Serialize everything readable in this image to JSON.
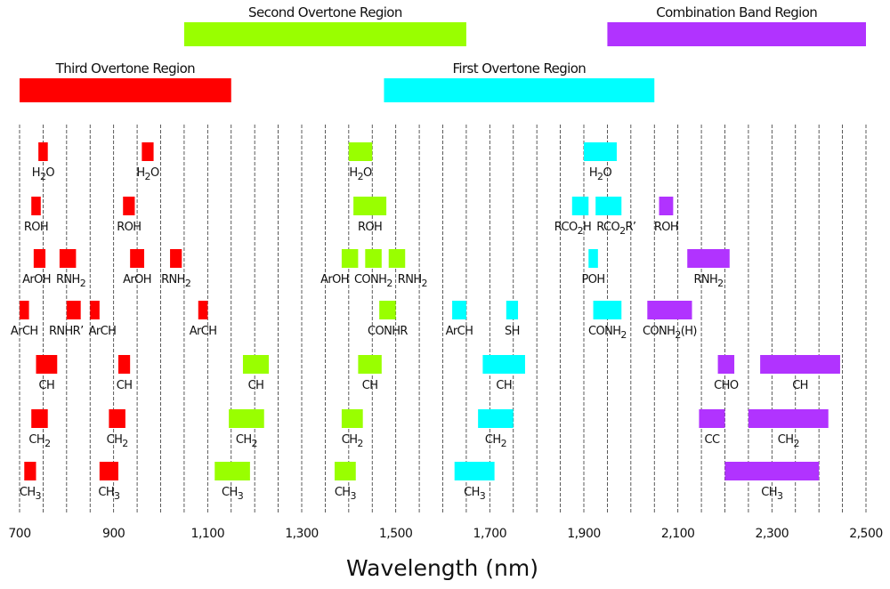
{
  "chart_data": {
    "type": "bar",
    "orientation": "horizontal-range",
    "xlabel": "Wavelength  (nm)",
    "xlim": [
      700,
      2500
    ],
    "xticks": [
      700,
      900,
      1100,
      1300,
      1500,
      1700,
      1900,
      2100,
      2300,
      2500
    ],
    "xtick_labels": [
      "700",
      "900",
      "1,100",
      "1,300",
      "1,500",
      "1,700",
      "1,900",
      "2,100",
      "2,300",
      "2,500"
    ],
    "grid": {
      "vertical": true,
      "style": "dashed",
      "step": 50
    },
    "colors": {
      "third": "#ff0000",
      "second": "#99ff00",
      "first": "#00ffff",
      "combination": "#b133ff"
    },
    "regions": [
      {
        "name": "Second Overtone Region",
        "key": "second",
        "range": [
          1050,
          1650
        ],
        "tier": 1
      },
      {
        "name": "Combination Band Region",
        "key": "combination",
        "range": [
          1950,
          2500
        ],
        "tier": 1
      },
      {
        "name": "Third Overtone Region",
        "key": "third",
        "range": [
          700,
          1150
        ],
        "tier": 2
      },
      {
        "name": "First Overtone Region",
        "key": "first",
        "range": [
          1475,
          2050
        ],
        "tier": 2
      }
    ],
    "bands": [
      {
        "row": 1,
        "label": [
          [
            "H",
            ""
          ],
          [
            "2",
            "sub"
          ],
          [
            "O",
            ""
          ]
        ],
        "region": "third",
        "range": [
          740,
          760
        ]
      },
      {
        "row": 1,
        "label": [
          [
            "H",
            ""
          ],
          [
            "2",
            "sub"
          ],
          [
            "O",
            ""
          ]
        ],
        "region": "third",
        "range": [
          960,
          985
        ]
      },
      {
        "row": 1,
        "label": [
          [
            "H",
            ""
          ],
          [
            "2",
            "sub"
          ],
          [
            "O",
            ""
          ]
        ],
        "region": "second",
        "range": [
          1400,
          1450
        ]
      },
      {
        "row": 1,
        "label": [
          [
            "H",
            ""
          ],
          [
            "2",
            "sub"
          ],
          [
            "O",
            ""
          ]
        ],
        "region": "first",
        "range": [
          1900,
          1970
        ]
      },
      {
        "row": 2,
        "label": [
          [
            "ROH",
            ""
          ]
        ],
        "region": "third",
        "range": [
          725,
          745
        ]
      },
      {
        "row": 2,
        "label": [
          [
            "ROH",
            ""
          ]
        ],
        "region": "third",
        "range": [
          920,
          945
        ]
      },
      {
        "row": 2,
        "label": [
          [
            "ROH",
            ""
          ]
        ],
        "region": "second",
        "range": [
          1410,
          1480
        ]
      },
      {
        "row": 2,
        "label": [
          [
            "RCO",
            ""
          ],
          [
            "2",
            "sub"
          ],
          [
            "H",
            ""
          ]
        ],
        "region": "first",
        "range": [
          1875,
          1910
        ]
      },
      {
        "row": 2,
        "label": [
          [
            "RCO",
            ""
          ],
          [
            "2",
            "sub"
          ],
          [
            "R’",
            ""
          ]
        ],
        "region": "first",
        "range": [
          1925,
          1980
        ]
      },
      {
        "row": 2,
        "label": [
          [
            "ROH",
            ""
          ]
        ],
        "region": "combination",
        "range": [
          2060,
          2090
        ]
      },
      {
        "row": 3,
        "label": [
          [
            "ArOH",
            ""
          ]
        ],
        "region": "third",
        "range": [
          730,
          755
        ]
      },
      {
        "row": 3,
        "label": [
          [
            "RNH",
            ""
          ],
          [
            "2",
            "sub"
          ]
        ],
        "region": "third",
        "range": [
          785,
          820
        ]
      },
      {
        "row": 3,
        "label": [
          [
            "ArOH",
            ""
          ]
        ],
        "region": "third",
        "range": [
          935,
          965
        ]
      },
      {
        "row": 3,
        "label": [
          [
            "RNH",
            ""
          ],
          [
            "2",
            "sub"
          ]
        ],
        "region": "third",
        "range": [
          1020,
          1045
        ]
      },
      {
        "row": 3,
        "label": [
          [
            "ArOH",
            ""
          ]
        ],
        "region": "second",
        "range": [
          1385,
          1420
        ]
      },
      {
        "row": 3,
        "label": [
          [
            "CONH",
            ""
          ],
          [
            "2",
            "sub"
          ]
        ],
        "region": "second",
        "range": [
          1435,
          1470
        ]
      },
      {
        "row": 3,
        "label": [
          [
            "RNH",
            ""
          ],
          [
            "2",
            "sub"
          ]
        ],
        "region": "second",
        "range": [
          1485,
          1520
        ]
      },
      {
        "row": 3,
        "label": [
          [
            "POH",
            ""
          ]
        ],
        "region": "first",
        "range": [
          1910,
          1930
        ]
      },
      {
        "row": 3,
        "label": [
          [
            "RNH",
            ""
          ],
          [
            "2",
            "sub"
          ]
        ],
        "region": "combination",
        "range": [
          2120,
          2210
        ]
      },
      {
        "row": 4,
        "label": [
          [
            "ArCH",
            ""
          ]
        ],
        "region": "third",
        "range": [
          700,
          720
        ]
      },
      {
        "row": 4,
        "label": [
          [
            "RNHR’",
            ""
          ]
        ],
        "region": "third",
        "range": [
          800,
          830
        ]
      },
      {
        "row": 4,
        "label": [
          [
            "ArCH",
            ""
          ]
        ],
        "region": "third",
        "range": [
          850,
          870
        ]
      },
      {
        "row": 4,
        "label": [
          [
            "ArCH",
            ""
          ]
        ],
        "region": "third",
        "range": [
          1080,
          1100
        ]
      },
      {
        "row": 4,
        "label": [
          [
            "CONHR",
            ""
          ]
        ],
        "region": "second",
        "range": [
          1465,
          1500
        ]
      },
      {
        "row": 4,
        "label": [
          [
            "ArCH",
            ""
          ]
        ],
        "region": "first",
        "range": [
          1620,
          1650
        ]
      },
      {
        "row": 4,
        "label": [
          [
            "SH",
            ""
          ]
        ],
        "region": "first",
        "range": [
          1735,
          1760
        ]
      },
      {
        "row": 4,
        "label": [
          [
            "CONH",
            ""
          ],
          [
            "2",
            "sub"
          ]
        ],
        "region": "first",
        "range": [
          1920,
          1980
        ]
      },
      {
        "row": 4,
        "label": [
          [
            "CONH",
            ""
          ],
          [
            "2",
            "sub"
          ],
          [
            "(H)",
            ""
          ]
        ],
        "region": "combination",
        "range": [
          2035,
          2130
        ]
      },
      {
        "row": 5,
        "label": [
          [
            "CH",
            ""
          ]
        ],
        "region": "third",
        "range": [
          735,
          780
        ]
      },
      {
        "row": 5,
        "label": [
          [
            "CH",
            ""
          ]
        ],
        "region": "third",
        "range": [
          910,
          935
        ]
      },
      {
        "row": 5,
        "label": [
          [
            "CH",
            ""
          ]
        ],
        "region": "second",
        "range": [
          1175,
          1230
        ]
      },
      {
        "row": 5,
        "label": [
          [
            "CH",
            ""
          ]
        ],
        "region": "second",
        "range": [
          1420,
          1470
        ]
      },
      {
        "row": 5,
        "label": [
          [
            "CH",
            ""
          ]
        ],
        "region": "first",
        "range": [
          1685,
          1775
        ]
      },
      {
        "row": 5,
        "label": [
          [
            "CHO",
            ""
          ]
        ],
        "region": "combination",
        "range": [
          2185,
          2220
        ]
      },
      {
        "row": 5,
        "label": [
          [
            "CH",
            ""
          ]
        ],
        "region": "combination",
        "range": [
          2275,
          2445
        ]
      },
      {
        "row": 6,
        "label": [
          [
            "CH",
            ""
          ],
          [
            "2",
            "sub"
          ]
        ],
        "region": "third",
        "range": [
          725,
          760
        ]
      },
      {
        "row": 6,
        "label": [
          [
            "CH",
            ""
          ],
          [
            "2",
            "sub"
          ]
        ],
        "region": "third",
        "range": [
          890,
          925
        ]
      },
      {
        "row": 6,
        "label": [
          [
            "CH",
            ""
          ],
          [
            "2",
            "sub"
          ]
        ],
        "region": "second",
        "range": [
          1145,
          1220
        ]
      },
      {
        "row": 6,
        "label": [
          [
            "CH",
            ""
          ],
          [
            "2",
            "sub"
          ]
        ],
        "region": "second",
        "range": [
          1385,
          1430
        ]
      },
      {
        "row": 6,
        "label": [
          [
            "CH",
            ""
          ],
          [
            "2",
            "sub"
          ]
        ],
        "region": "first",
        "range": [
          1675,
          1750
        ]
      },
      {
        "row": 6,
        "label": [
          [
            "CC",
            ""
          ]
        ],
        "region": "combination",
        "range": [
          2145,
          2200
        ]
      },
      {
        "row": 6,
        "label": [
          [
            "CH",
            ""
          ],
          [
            "2",
            "sub"
          ]
        ],
        "region": "combination",
        "range": [
          2250,
          2420
        ]
      },
      {
        "row": 7,
        "label": [
          [
            "CH",
            ""
          ],
          [
            "3",
            "sub"
          ]
        ],
        "region": "third",
        "range": [
          710,
          735
        ]
      },
      {
        "row": 7,
        "label": [
          [
            "CH",
            ""
          ],
          [
            "3",
            "sub"
          ]
        ],
        "region": "third",
        "range": [
          870,
          910
        ]
      },
      {
        "row": 7,
        "label": [
          [
            "CH",
            ""
          ],
          [
            "3",
            "sub"
          ]
        ],
        "region": "second",
        "range": [
          1115,
          1190
        ]
      },
      {
        "row": 7,
        "label": [
          [
            "CH",
            ""
          ],
          [
            "3",
            "sub"
          ]
        ],
        "region": "second",
        "range": [
          1370,
          1415
        ]
      },
      {
        "row": 7,
        "label": [
          [
            "CH",
            ""
          ],
          [
            "3",
            "sub"
          ]
        ],
        "region": "first",
        "range": [
          1625,
          1710
        ]
      },
      {
        "row": 7,
        "label": [
          [
            "CH",
            ""
          ],
          [
            "3",
            "sub"
          ]
        ],
        "region": "combination",
        "range": [
          2200,
          2400
        ]
      }
    ]
  }
}
